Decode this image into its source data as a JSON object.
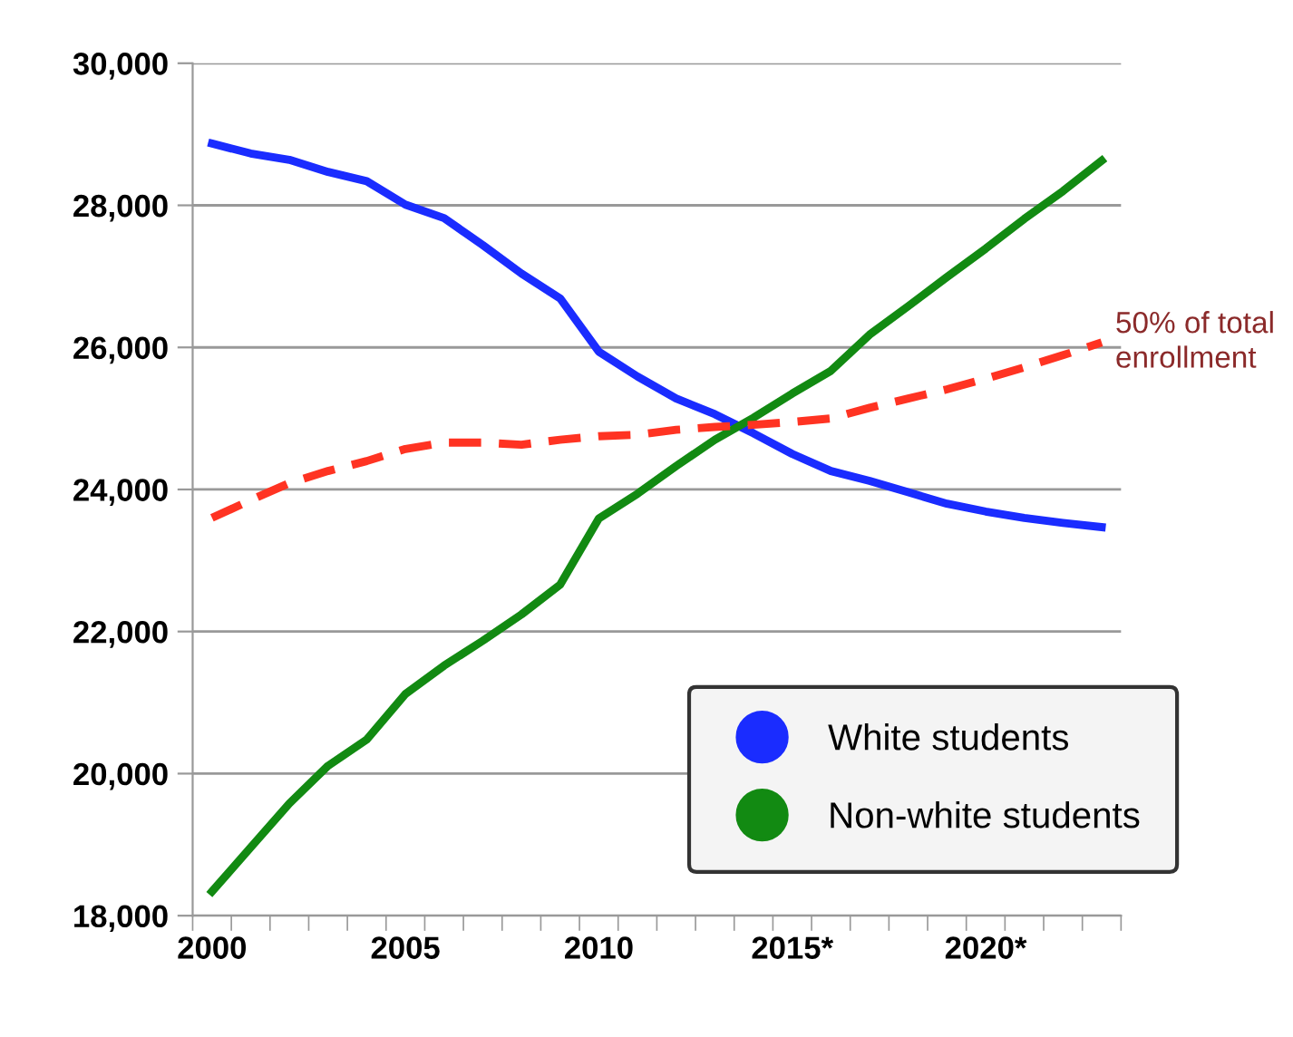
{
  "chart_data": {
    "type": "line",
    "categories": [
      "2000",
      null,
      null,
      null,
      null,
      "2005",
      null,
      null,
      null,
      null,
      "2010",
      null,
      null,
      null,
      null,
      "2015*",
      null,
      null,
      null,
      null,
      "2020*",
      null,
      null,
      null
    ],
    "series": [
      {
        "name": "White students",
        "color": "#1a2cff",
        "values": [
          28870,
          28730,
          28640,
          28470,
          28340,
          28010,
          27820,
          27440,
          27040,
          26690,
          25940,
          25590,
          25280,
          25060,
          24790,
          24500,
          24260,
          24120,
          23960,
          23800,
          23690,
          23600,
          23530,
          23470
        ]
      },
      {
        "name": "Non-white students",
        "color": "#128a12",
        "values": [
          18340,
          18960,
          19580,
          20110,
          20480,
          21120,
          21520,
          21870,
          22240,
          22660,
          23590,
          23940,
          24330,
          24700,
          25010,
          25350,
          25670,
          26180,
          26580,
          26990,
          27390,
          27810,
          28200,
          28630
        ]
      },
      {
        "color": "#ff3322",
        "line_style": "dashed",
        "values": [
          23600,
          23850,
          24090,
          24260,
          24400,
          24570,
          24660,
          24660,
          24630,
          24700,
          24750,
          24770,
          24840,
          24880,
          24910,
          24950,
          25000,
          25150,
          25280,
          25410,
          25560,
          25720,
          25890,
          26070
        ]
      }
    ],
    "annotations": [
      "50% of total\nenrollment"
    ],
    "ylim": [
      18000,
      30000
    ],
    "yticks": [
      {
        "value": 18000,
        "label": "18,000"
      },
      {
        "value": 20000,
        "label": "20,000"
      },
      {
        "value": 22000,
        "label": "22,000"
      },
      {
        "value": 24000,
        "label": "24,000"
      },
      {
        "value": 26000,
        "label": "26,000"
      },
      {
        "value": 28000,
        "label": "28,000"
      },
      {
        "value": 30000,
        "label": "30,000"
      }
    ],
    "grid": "y",
    "legend": "bottom right"
  }
}
